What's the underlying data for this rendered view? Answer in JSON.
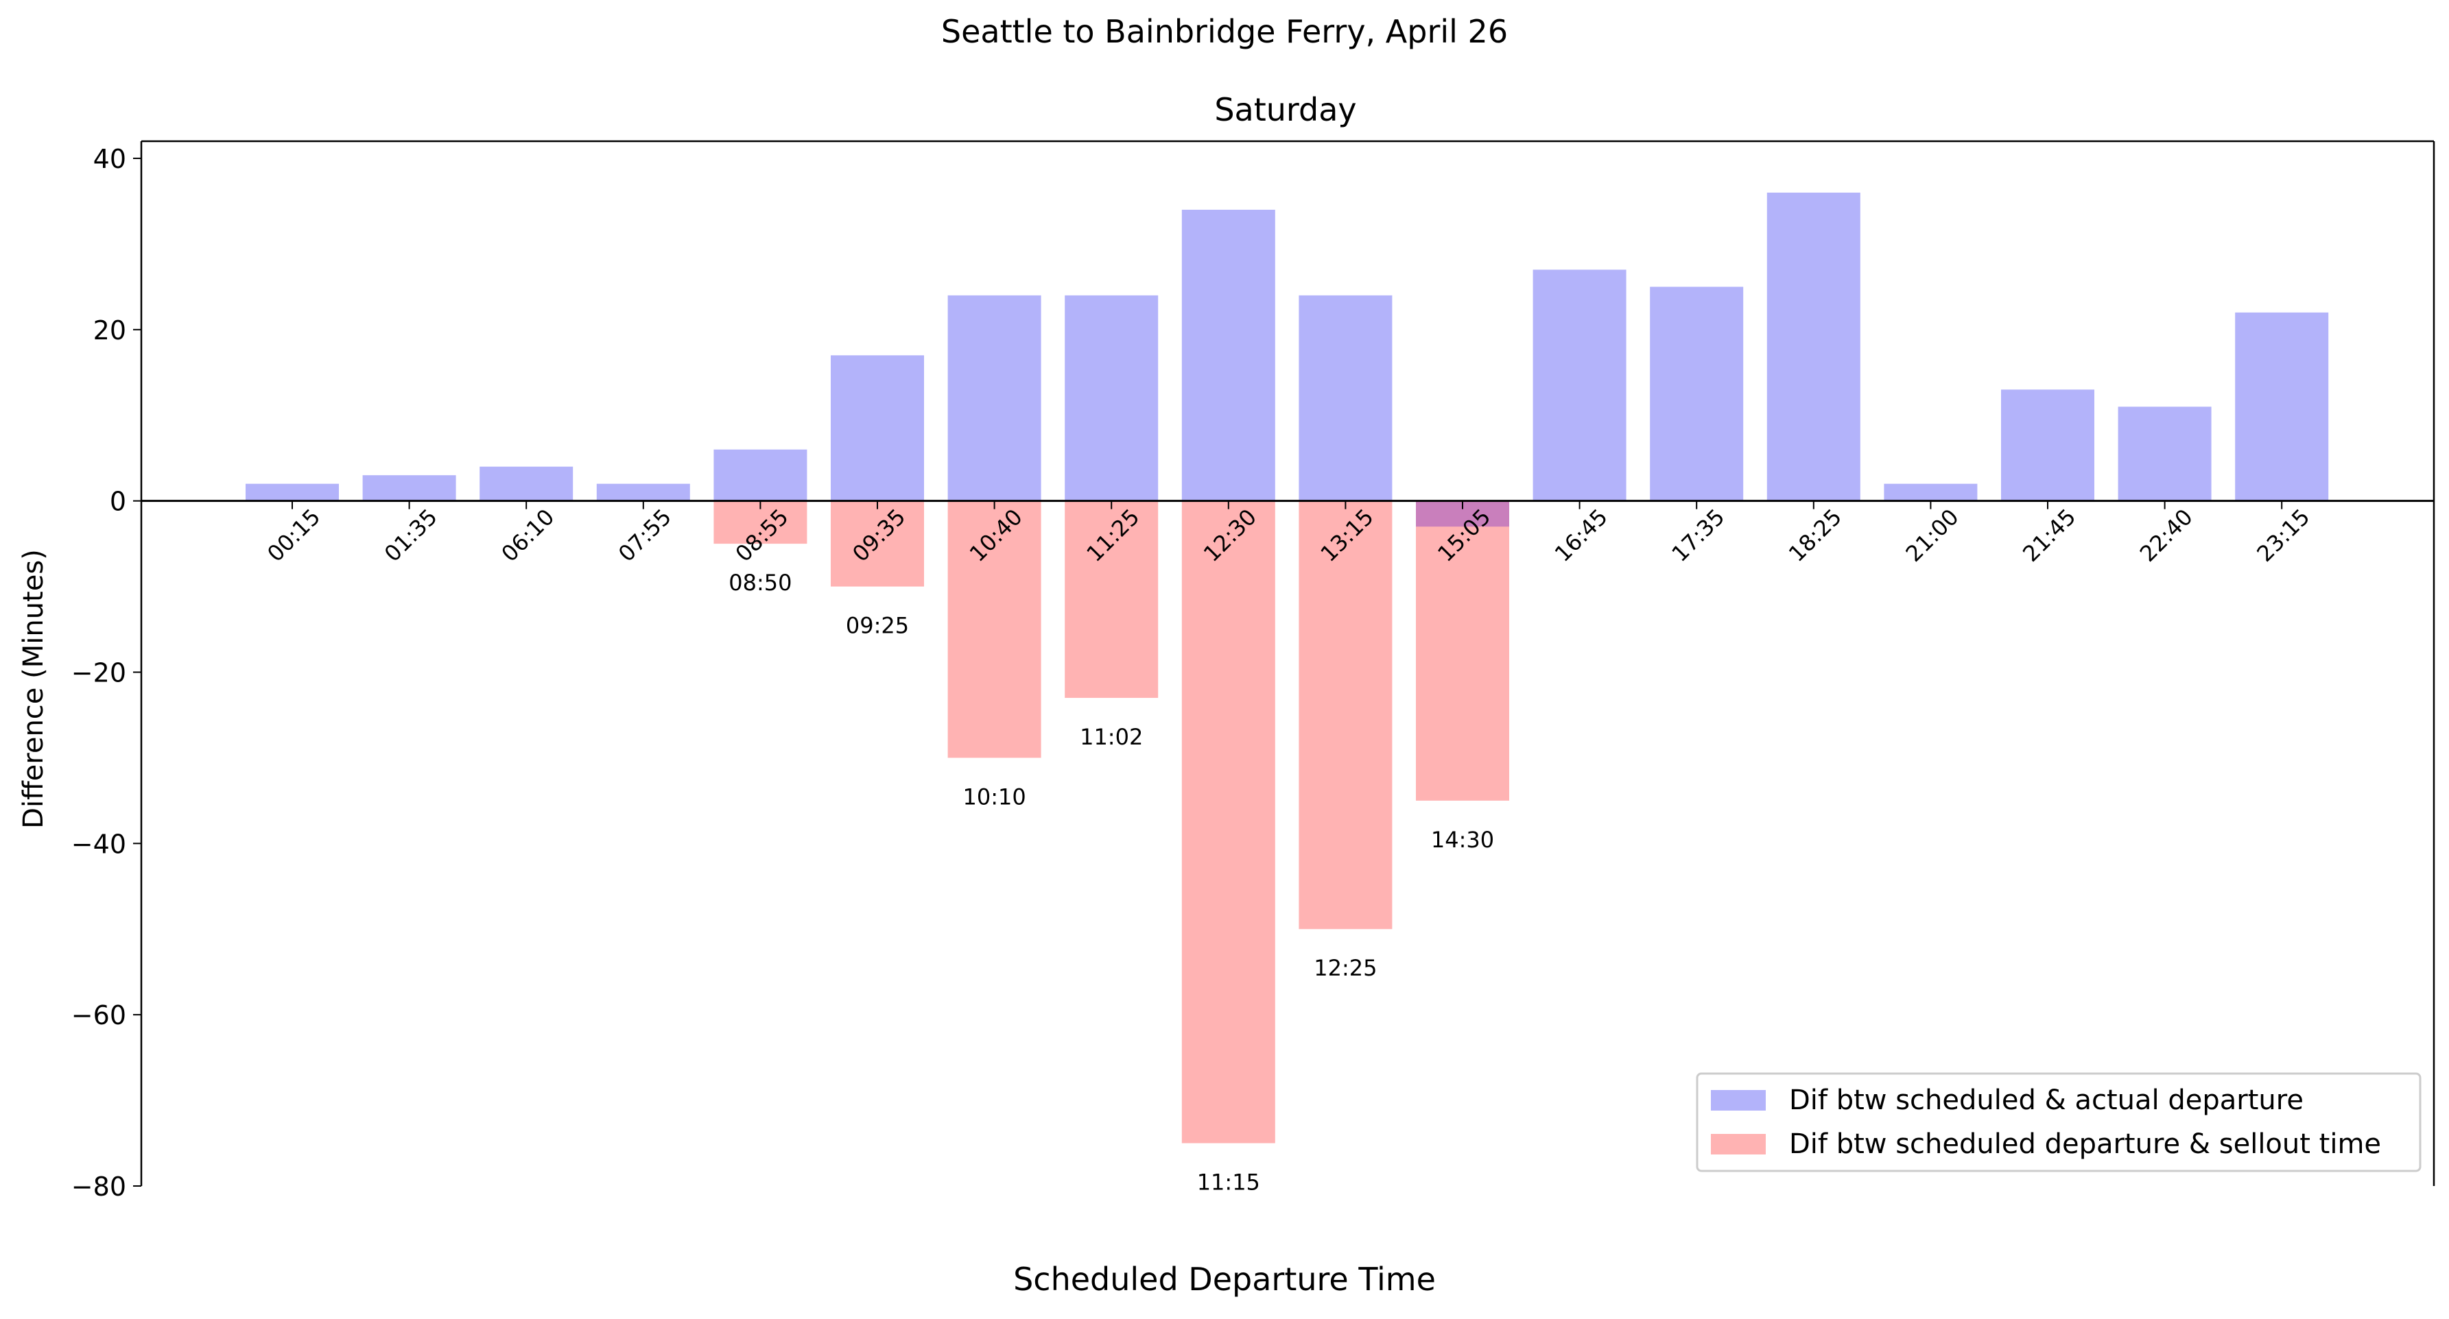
{
  "chart_data": {
    "type": "bar",
    "suptitle": "Seattle to Bainbridge Ferry, April 26",
    "title": "Saturday",
    "xlabel": "Scheduled Departure Time",
    "ylabel": "Difference (Minutes)",
    "ylim": [
      -80,
      42
    ],
    "yticks": [
      40,
      20,
      0,
      -20,
      -40,
      -60,
      -80
    ],
    "ytick_labels": [
      "40",
      "20",
      "0",
      "−20",
      "−40",
      "−60",
      "−80"
    ],
    "categories": [
      "00:15",
      "01:35",
      "06:10",
      "07:55",
      "08:55",
      "09:35",
      "10:40",
      "11:25",
      "12:30",
      "13:15",
      "15:05",
      "16:45",
      "17:35",
      "18:25",
      "21:00",
      "21:45",
      "22:40",
      "23:15"
    ],
    "series": [
      {
        "name": "Dif btw scheduled & actual departure",
        "color": "#b3b3fa",
        "values": [
          2,
          3,
          4,
          2,
          6,
          17,
          24,
          24,
          34,
          24,
          -3,
          27,
          25,
          36,
          2,
          13,
          11,
          22
        ]
      },
      {
        "name": "Dif btw scheduled departure & sellout time",
        "color": "#ffb3b3",
        "values": [
          null,
          null,
          null,
          null,
          -5,
          -10,
          -30,
          -23,
          -75,
          -50,
          -35,
          null,
          null,
          null,
          null,
          null,
          null,
          null
        ],
        "sellout_labels": [
          null,
          null,
          null,
          null,
          "08:50",
          "09:25",
          "10:10",
          "11:02",
          "11:15",
          "12:25",
          "14:30",
          null,
          null,
          null,
          null,
          null,
          null,
          null
        ],
        "label_color": "#ff0000"
      }
    ],
    "overlap_color": "#c97fbc",
    "legend_position": "lower-right",
    "grid": false
  }
}
